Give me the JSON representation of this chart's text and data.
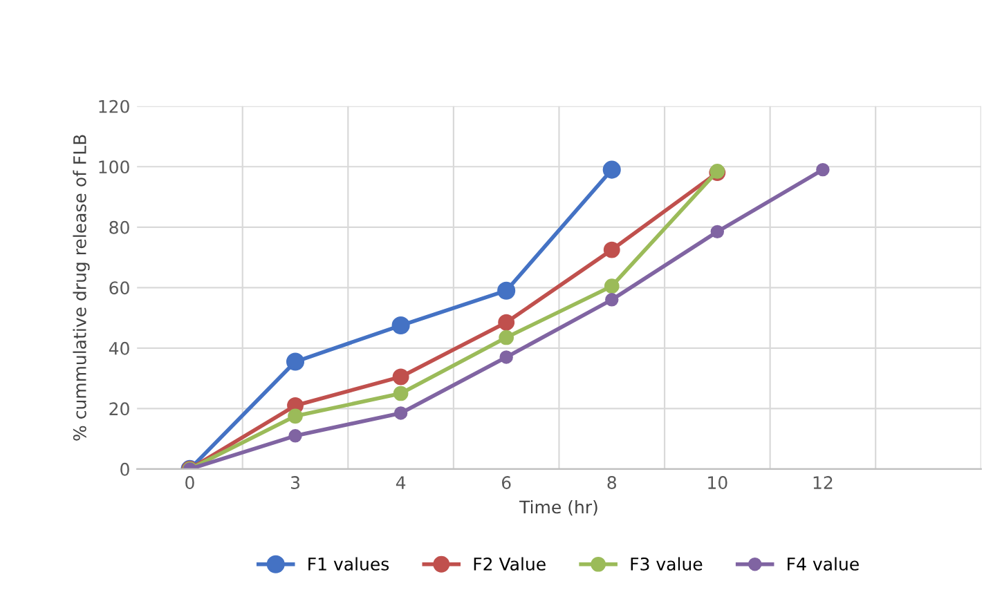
{
  "chart_data": {
    "type": "line",
    "xlabel": "Time (hr)",
    "ylabel": "% cummulative drug release of FLB",
    "categories": [
      "0",
      "3",
      "4",
      "6",
      "8",
      "10",
      "12",
      null
    ],
    "series": [
      {
        "name": "F1 values",
        "color": "#4472c4",
        "values": [
          0,
          35.5,
          47.5,
          59,
          99,
          null,
          null,
          null
        ]
      },
      {
        "name": "F2 Value",
        "color": "#c0504d",
        "values": [
          0,
          21,
          30.5,
          48.5,
          72.5,
          98,
          null,
          null
        ]
      },
      {
        "name": "F3 value",
        "color": "#9bbb59",
        "values": [
          0,
          17.5,
          25,
          43.5,
          60.5,
          98.5,
          null,
          null
        ]
      },
      {
        "name": "F4 value",
        "color": "#8064a2",
        "values": [
          0,
          11,
          18.5,
          37,
          56,
          78.5,
          99,
          null
        ]
      }
    ],
    "ylim": [
      0,
      120
    ],
    "yticks": [
      0,
      20,
      40,
      60,
      80,
      100,
      120
    ],
    "grid": true,
    "legend": "bottom",
    "marker": "circle",
    "line_style": "solid"
  }
}
